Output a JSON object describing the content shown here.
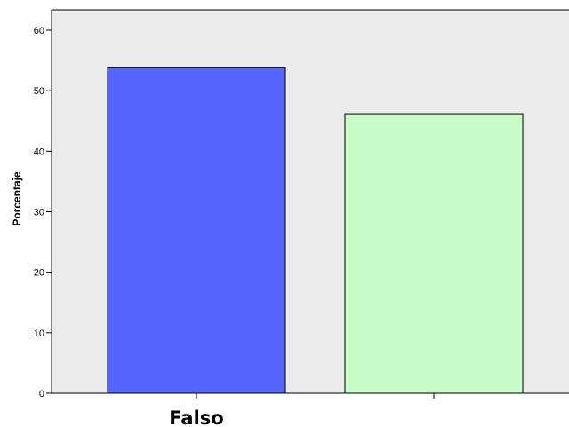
{
  "chart_data": {
    "type": "bar",
    "categories": [
      "Falso",
      ""
    ],
    "values": [
      53.8,
      46.2
    ],
    "title": "",
    "xlabel": "",
    "ylabel": "Porcentaje",
    "ylim": [
      0,
      60
    ],
    "yticks": [
      0,
      10,
      20,
      30,
      40,
      50,
      60
    ],
    "grid": false,
    "legend": "none",
    "colors": {
      "plot_background": "#ebebeb",
      "bar_fills": [
        "#5566ff",
        "#c8fcc8"
      ],
      "bar_stroke": "#000000"
    }
  }
}
